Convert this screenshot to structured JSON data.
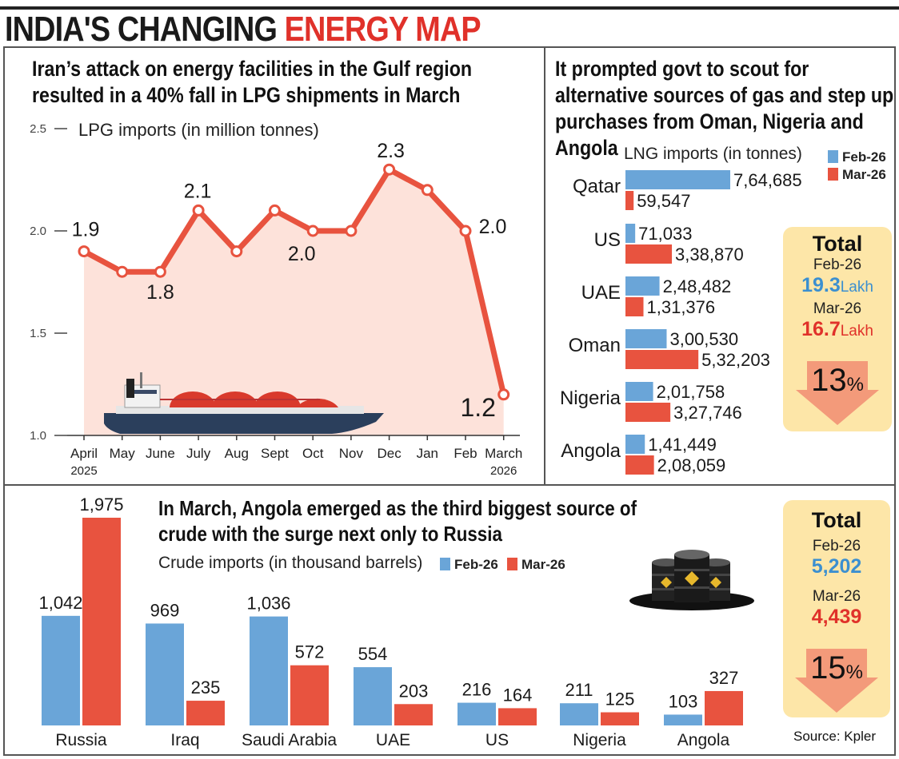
{
  "headline": {
    "part1": "INDIA'S CHANGING ",
    "part2": "ENERGY MAP"
  },
  "colors": {
    "feb": "#6aa5d8",
    "mar": "#e8533f",
    "line": "#e8533f",
    "area": "#fde2da",
    "box": "#fde6a8"
  },
  "lpg": {
    "title": "Iran’s attack on energy facilities in the Gulf region resulted in a 40% fall in LPG shipments in March",
    "ylabel": "LPG imports (in million tonnes)"
  },
  "lng": {
    "title": "It prompted govt to scout for alternative sources of gas and step up purchases from Oman, Nigeria and Angola",
    "caption": "LNG imports (in tonnes)",
    "legend_feb": "Feb-26",
    "legend_mar": "Mar-26",
    "total": {
      "title": "Total",
      "feb_label": "Feb-26",
      "feb_value": "19.3",
      "feb_unit": "Lakh",
      "mar_label": "Mar-26",
      "mar_value": "16.7",
      "mar_unit": "Lakh",
      "change": "13",
      "change_unit": "%"
    }
  },
  "crude": {
    "title": "In March, Angola emerged as the third biggest source of crude with the surge next only to Russia",
    "caption": "Crude imports (in thousand barrels)",
    "legend_feb": "Feb-26",
    "legend_mar": "Mar-26",
    "total": {
      "title": "Total",
      "feb_label": "Feb-26",
      "feb_value": "5,202",
      "mar_label": "Mar-26",
      "mar_value": "4,439",
      "change": "15",
      "change_unit": "%"
    }
  },
  "source": "Source: Kpler",
  "chart_data": [
    {
      "type": "line",
      "title": "Iran’s attack on energy facilities in the Gulf region resulted in a 40% fall in LPG shipments in March",
      "ylabel": "LPG imports (in million tonnes)",
      "categories": [
        "April\n2025",
        "May",
        "June",
        "July",
        "Aug",
        "Sept",
        "Oct",
        "Nov",
        "Dec",
        "Jan",
        "Feb",
        "March\n2026"
      ],
      "values": [
        1.9,
        1.8,
        1.8,
        2.1,
        1.9,
        2.1,
        2.0,
        2.0,
        2.3,
        2.2,
        2.0,
        1.2
      ],
      "data_labels": [
        "1.9",
        "",
        "1.8",
        "2.1",
        "",
        "",
        "2.0",
        "",
        "2.3",
        "",
        "2.0",
        "1.2"
      ],
      "yticks": [
        "1.0",
        "1.5",
        "2.0",
        "2.5"
      ],
      "ylim": [
        1.0,
        2.5
      ],
      "grid": false
    },
    {
      "type": "bar",
      "orientation": "horizontal",
      "ylabel": "LNG imports (in tonnes)",
      "categories": [
        "Qatar",
        "US",
        "UAE",
        "Oman",
        "Nigeria",
        "Angola"
      ],
      "series": [
        {
          "name": "Feb-26",
          "values": [
            764685,
            71033,
            248482,
            300530,
            201758,
            141449
          ],
          "labels": [
            "7,64,685",
            "71,033",
            "2,48,482",
            "3,00,530",
            "2,01,758",
            "1,41,449"
          ]
        },
        {
          "name": "Mar-26",
          "values": [
            59547,
            338870,
            131376,
            532203,
            327746,
            208059
          ],
          "labels": [
            "59,547",
            "3,38,870",
            "1,31,376",
            "5,32,203",
            "3,27,746",
            "2,08,059"
          ]
        }
      ],
      "legend": "top-right"
    },
    {
      "type": "bar",
      "ylabel": "Crude imports (in thousand barrels)",
      "categories": [
        "Russia",
        "Iraq",
        "Saudi Arabia",
        "UAE",
        "US",
        "Nigeria",
        "Angola"
      ],
      "series": [
        {
          "name": "Feb-26",
          "values": [
            1042,
            969,
            1036,
            554,
            216,
            211,
            103
          ],
          "labels": [
            "1,042",
            "969",
            "1,036",
            "554",
            "216",
            "211",
            "103"
          ]
        },
        {
          "name": "Mar-26",
          "values": [
            1975,
            235,
            572,
            203,
            164,
            125,
            327
          ],
          "labels": [
            "1,975",
            "235",
            "572",
            "203",
            "164",
            "125",
            "327"
          ]
        }
      ],
      "legend": "top"
    }
  ]
}
